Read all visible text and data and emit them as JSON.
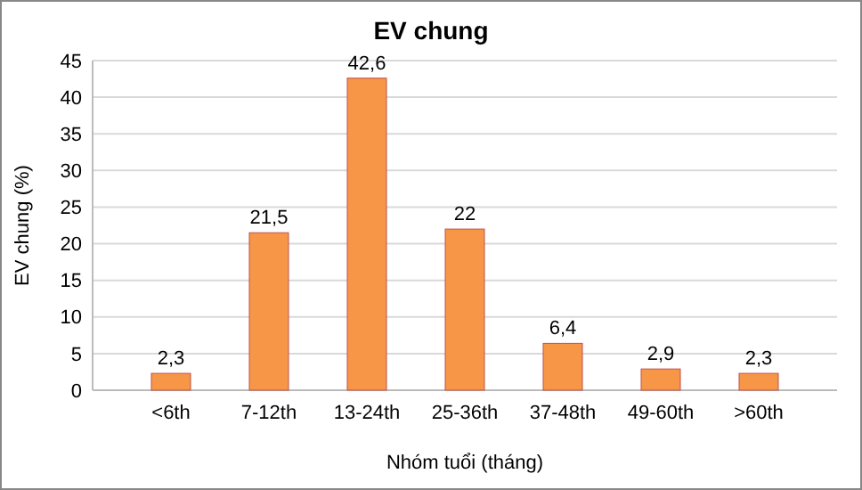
{
  "chart_data": {
    "type": "bar",
    "title": "EV chung",
    "xlabel": "Nhóm tuổi (tháng)",
    "ylabel": "EV chung (%)",
    "categories": [
      "<6th",
      "7-12th",
      "13-24th",
      "25-36th",
      "37-48th",
      "49-60th",
      ">60th"
    ],
    "values": [
      2.3,
      21.5,
      42.6,
      22,
      6.4,
      2.9,
      2.3
    ],
    "value_labels": [
      "2,3",
      "21,5",
      "42,6",
      "22",
      "6,4",
      "2,9",
      "2,3"
    ],
    "color": "#f79646",
    "ylim": [
      0,
      45
    ],
    "yticks": [
      0,
      5,
      10,
      15,
      20,
      25,
      30,
      35,
      40,
      45
    ],
    "grid": "y"
  }
}
